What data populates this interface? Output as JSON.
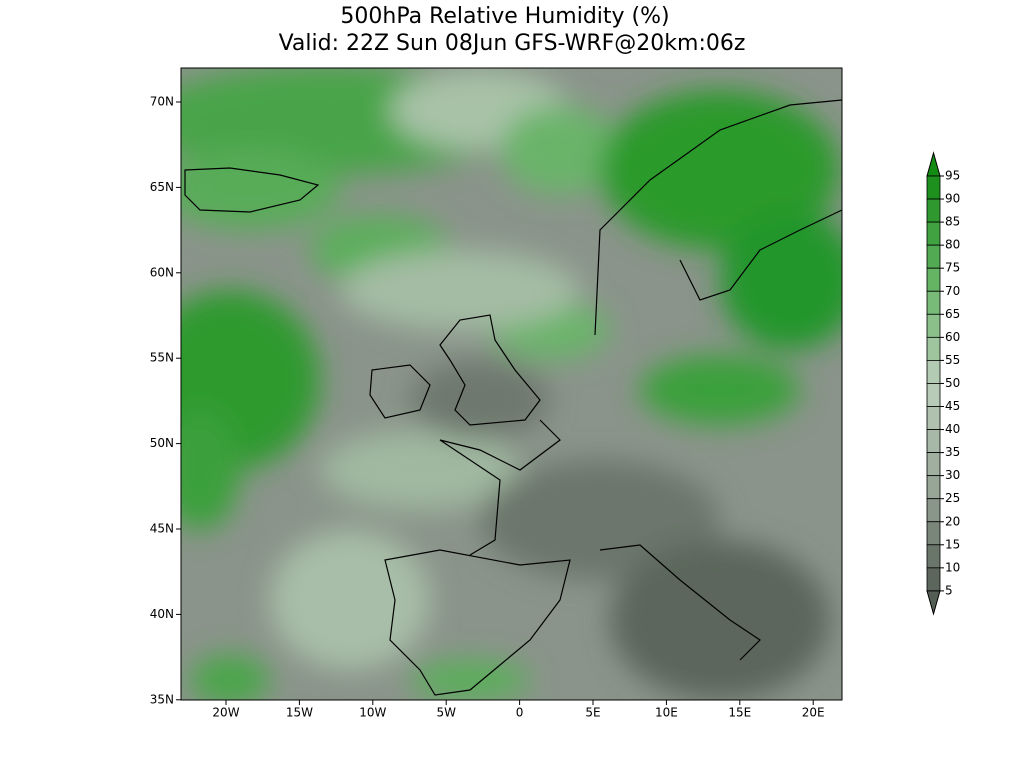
{
  "title": [
    "500hPa Relative Humidity (%)",
    "Valid: 22Z Sun 08Jun GFS-WRF@20km:06z"
  ],
  "lat_labels": [
    "70N",
    "65N",
    "60N",
    "55N",
    "50N",
    "45N",
    "40N",
    "35N"
  ],
  "lon_labels": [
    "20W",
    "15W",
    "10W",
    "5W",
    "0",
    "5E",
    "10E",
    "15E",
    "20E"
  ],
  "colorbar_levels": [
    95,
    90,
    85,
    80,
    75,
    70,
    65,
    60,
    55,
    50,
    45,
    40,
    35,
    30,
    25,
    20,
    15,
    10,
    5
  ]
}
